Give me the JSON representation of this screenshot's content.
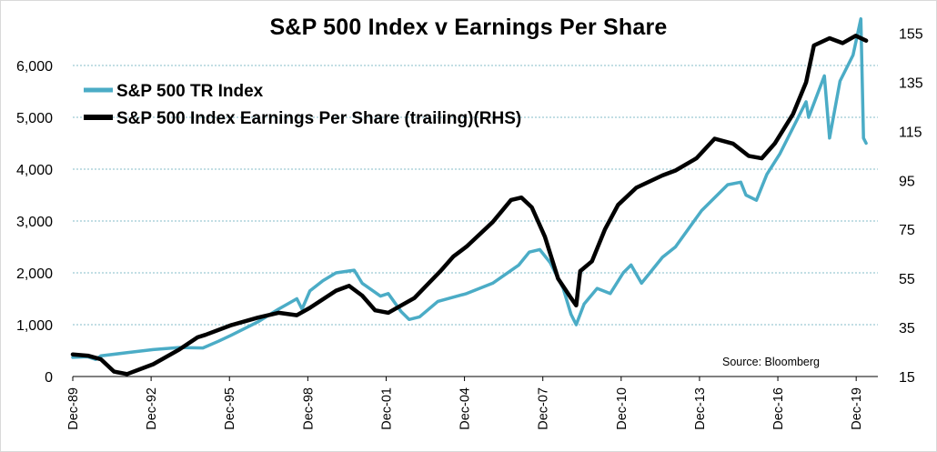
{
  "chart_data": {
    "type": "line",
    "title": "S&P 500 Index v Earnings Per Share",
    "source": "Source:  Bloomberg",
    "x_ticks": [
      "Dec-89",
      "Dec-92",
      "Dec-95",
      "Dec-98",
      "Dec-01",
      "Dec-04",
      "Dec-07",
      "Dec-10",
      "Dec-13",
      "Dec-16",
      "Dec-19"
    ],
    "y_left": {
      "range": [
        0,
        7000
      ],
      "ticks": [
        0,
        1000,
        2000,
        3000,
        4000,
        5000,
        6000
      ],
      "tick_labels": [
        "0",
        "1,000",
        "2,000",
        "3,000",
        "4,000",
        "5,000",
        "6,000"
      ]
    },
    "y_right": {
      "range": [
        15,
        163
      ],
      "ticks": [
        15,
        35,
        55,
        75,
        95,
        115,
        135,
        155
      ],
      "tick_labels": [
        "15",
        "35",
        "55",
        "75",
        "95",
        "115",
        "135",
        "155"
      ]
    },
    "x_range": [
      1989.92,
      2020.75
    ],
    "grid": "horizontal dotted lines at left-axis ticks",
    "legend_position": "top-left",
    "series": [
      {
        "name": "S&P 500 TR Index",
        "axis": "left",
        "color": "#4bacc6",
        "points": [
          [
            1989.92,
            370
          ],
          [
            1990.5,
            380
          ],
          [
            1990.8,
            330
          ],
          [
            1991.0,
            400
          ],
          [
            1992.0,
            460
          ],
          [
            1993.0,
            520
          ],
          [
            1994.0,
            560
          ],
          [
            1994.9,
            550
          ],
          [
            1995.5,
            680
          ],
          [
            1996.0,
            800
          ],
          [
            1997.0,
            1050
          ],
          [
            1997.8,
            1300
          ],
          [
            1998.5,
            1500
          ],
          [
            1998.7,
            1300
          ],
          [
            1999.0,
            1650
          ],
          [
            1999.5,
            1850
          ],
          [
            2000.0,
            2000
          ],
          [
            2000.7,
            2050
          ],
          [
            2001.0,
            1800
          ],
          [
            2001.7,
            1550
          ],
          [
            2002.0,
            1600
          ],
          [
            2002.5,
            1250
          ],
          [
            2002.8,
            1100
          ],
          [
            2003.2,
            1150
          ],
          [
            2003.9,
            1450
          ],
          [
            2005.0,
            1600
          ],
          [
            2006.0,
            1800
          ],
          [
            2007.0,
            2150
          ],
          [
            2007.4,
            2400
          ],
          [
            2007.8,
            2450
          ],
          [
            2008.2,
            2200
          ],
          [
            2008.7,
            1700
          ],
          [
            2009.0,
            1200
          ],
          [
            2009.2,
            1000
          ],
          [
            2009.5,
            1400
          ],
          [
            2010.0,
            1700
          ],
          [
            2010.5,
            1600
          ],
          [
            2011.0,
            2000
          ],
          [
            2011.3,
            2150
          ],
          [
            2011.7,
            1800
          ],
          [
            2012.5,
            2300
          ],
          [
            2013.0,
            2500
          ],
          [
            2014.0,
            3200
          ],
          [
            2015.0,
            3700
          ],
          [
            2015.5,
            3750
          ],
          [
            2015.7,
            3500
          ],
          [
            2016.1,
            3400
          ],
          [
            2016.5,
            3900
          ],
          [
            2017.0,
            4300
          ],
          [
            2018.0,
            5300
          ],
          [
            2018.1,
            5000
          ],
          [
            2018.7,
            5800
          ],
          [
            2018.9,
            4600
          ],
          [
            2019.3,
            5700
          ],
          [
            2019.8,
            6200
          ],
          [
            2020.1,
            6900
          ],
          [
            2020.2,
            4600
          ],
          [
            2020.3,
            4500
          ]
        ]
      },
      {
        "name": "S&P 500 Index Earnings Per Share (trailing)(RHS)",
        "axis": "right",
        "color": "#000000",
        "points": [
          [
            1989.92,
            24
          ],
          [
            1990.5,
            23.5
          ],
          [
            1991.0,
            22
          ],
          [
            1991.5,
            17
          ],
          [
            1992.0,
            16
          ],
          [
            1992.5,
            18
          ],
          [
            1993.0,
            20
          ],
          [
            1994.0,
            26
          ],
          [
            1994.7,
            31
          ],
          [
            1995.0,
            32
          ],
          [
            1996.0,
            36
          ],
          [
            1997.0,
            39
          ],
          [
            1997.8,
            41
          ],
          [
            1998.5,
            40
          ],
          [
            1999.0,
            43
          ],
          [
            2000.0,
            50
          ],
          [
            2000.5,
            52
          ],
          [
            2001.0,
            48
          ],
          [
            2001.5,
            42
          ],
          [
            2002.0,
            41
          ],
          [
            2002.5,
            44
          ],
          [
            2003.0,
            47
          ],
          [
            2004.0,
            58
          ],
          [
            2004.5,
            64
          ],
          [
            2005.0,
            68
          ],
          [
            2006.0,
            78
          ],
          [
            2006.7,
            87
          ],
          [
            2007.1,
            88
          ],
          [
            2007.5,
            84
          ],
          [
            2008.0,
            72
          ],
          [
            2008.5,
            55
          ],
          [
            2009.0,
            47
          ],
          [
            2009.2,
            44
          ],
          [
            2009.35,
            58
          ],
          [
            2009.8,
            62
          ],
          [
            2010.3,
            75
          ],
          [
            2010.8,
            85
          ],
          [
            2011.5,
            92
          ],
          [
            2012.5,
            97
          ],
          [
            2013.0,
            99
          ],
          [
            2013.8,
            104
          ],
          [
            2014.5,
            112
          ],
          [
            2015.2,
            110
          ],
          [
            2015.8,
            105
          ],
          [
            2016.3,
            104
          ],
          [
            2016.8,
            110
          ],
          [
            2017.5,
            122
          ],
          [
            2018.0,
            135
          ],
          [
            2018.3,
            150
          ],
          [
            2018.9,
            153
          ],
          [
            2019.4,
            151
          ],
          [
            2019.9,
            154
          ],
          [
            2020.3,
            152
          ]
        ]
      }
    ]
  }
}
